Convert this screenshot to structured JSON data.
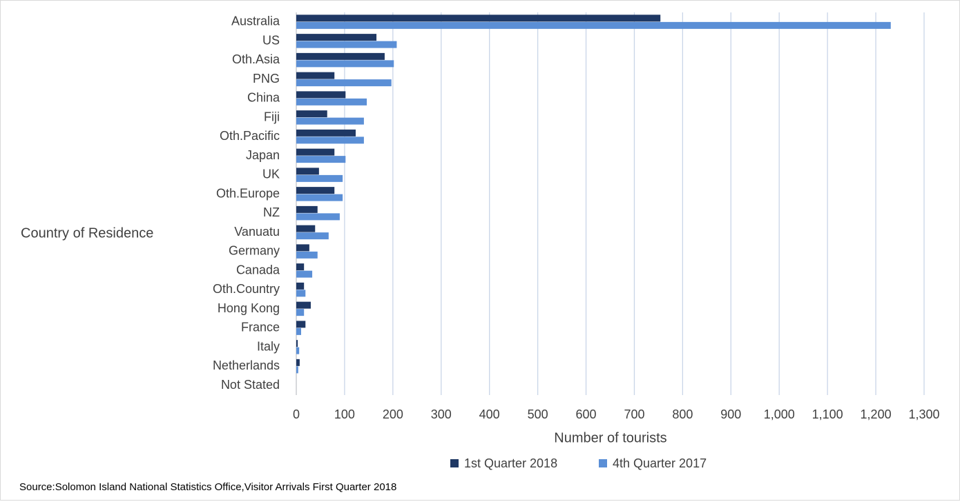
{
  "chart_data": {
    "type": "bar",
    "orientation": "horizontal",
    "xlabel": "Number of tourists",
    "ylabel": "Country of Residence",
    "source": "Source:Solomon Island National Statistics Office,Visitor Arrivals First Quarter 2018",
    "categories": [
      "Australia",
      "US",
      "Oth.Asia",
      "PNG",
      "China",
      "Fiji",
      "Oth.Pacific",
      "Japan",
      "UK",
      "Oth.Europe",
      "NZ",
      "Vanuatu",
      "Germany",
      "Canada",
      "Oth.Country",
      "Hong Kong",
      "France",
      "Italy",
      "Netherlands",
      "Not Stated"
    ],
    "series": [
      {
        "name": "1st Quarter 2018",
        "color": "#1f3864",
        "values": [
          754,
          166,
          183,
          79,
          102,
          64,
          123,
          79,
          47,
          79,
          44,
          39,
          27,
          16,
          16,
          30,
          19,
          3,
          7,
          0
        ]
      },
      {
        "name": "4th Quarter 2017",
        "color": "#5b8fd6",
        "values": [
          1231,
          208,
          202,
          197,
          146,
          140,
          140,
          102,
          96,
          96,
          90,
          67,
          44,
          33,
          19,
          16,
          10,
          6,
          4,
          0
        ]
      }
    ],
    "xlim": [
      0,
      1300
    ],
    "xticks": [
      0,
      100,
      200,
      300,
      400,
      500,
      600,
      700,
      800,
      900,
      {
        "value": 1000,
        "label": "1,000"
      },
      {
        "value": 1100,
        "label": "1,100"
      },
      {
        "value": 1200,
        "label": "1,200"
      },
      {
        "value": 1300,
        "label": "1,300"
      }
    ],
    "grid": true,
    "legend": "bottom"
  }
}
